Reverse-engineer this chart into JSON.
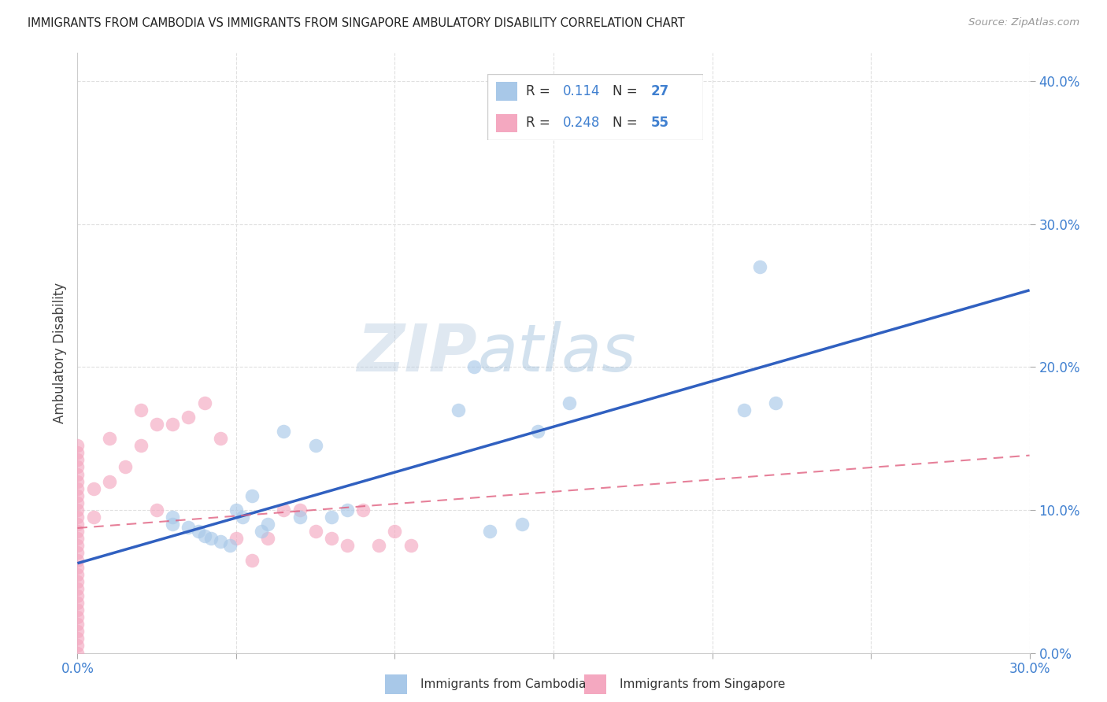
{
  "title": "IMMIGRANTS FROM CAMBODIA VS IMMIGRANTS FROM SINGAPORE AMBULATORY DISABILITY CORRELATION CHART",
  "source": "Source: ZipAtlas.com",
  "ylabel": "Ambulatory Disability",
  "legend_label1": "Immigrants from Cambodia",
  "legend_label2": "Immigrants from Singapore",
  "R1": "0.114",
  "N1": "27",
  "R2": "0.248",
  "N2": "55",
  "xlim": [
    0.0,
    0.3
  ],
  "ylim": [
    0.0,
    0.42
  ],
  "xticks": [
    0.0,
    0.05,
    0.1,
    0.15,
    0.2,
    0.25,
    0.3
  ],
  "yticks": [
    0.0,
    0.1,
    0.2,
    0.3,
    0.4
  ],
  "color_blue": "#a8c8e8",
  "color_pink": "#f4a8c0",
  "color_blue_line": "#3060c0",
  "color_pink_line": "#e06080",
  "color_blue_text": "#4080d0",
  "blue_x": [
    0.03,
    0.03,
    0.035,
    0.038,
    0.04,
    0.042,
    0.045,
    0.048,
    0.05,
    0.052,
    0.055,
    0.058,
    0.06,
    0.065,
    0.07,
    0.075,
    0.08,
    0.085,
    0.12,
    0.125,
    0.13,
    0.14,
    0.145,
    0.155,
    0.21,
    0.215,
    0.22
  ],
  "blue_y": [
    0.095,
    0.09,
    0.088,
    0.085,
    0.082,
    0.08,
    0.078,
    0.075,
    0.1,
    0.095,
    0.11,
    0.085,
    0.09,
    0.155,
    0.095,
    0.145,
    0.095,
    0.1,
    0.17,
    0.2,
    0.085,
    0.09,
    0.155,
    0.175,
    0.17,
    0.27,
    0.175
  ],
  "pink_x": [
    0.0,
    0.0,
    0.0,
    0.0,
    0.0,
    0.0,
    0.0,
    0.0,
    0.0,
    0.0,
    0.0,
    0.0,
    0.0,
    0.0,
    0.0,
    0.0,
    0.0,
    0.0,
    0.0,
    0.0,
    0.0,
    0.0,
    0.0,
    0.0,
    0.0,
    0.0,
    0.0,
    0.0,
    0.0,
    0.0,
    0.005,
    0.005,
    0.01,
    0.01,
    0.015,
    0.02,
    0.02,
    0.025,
    0.025,
    0.03,
    0.035,
    0.04,
    0.045,
    0.05,
    0.055,
    0.06,
    0.065,
    0.07,
    0.075,
    0.08,
    0.085,
    0.09,
    0.095,
    0.1,
    0.105
  ],
  "pink_y": [
    0.0,
    0.005,
    0.01,
    0.015,
    0.02,
    0.025,
    0.03,
    0.035,
    0.04,
    0.045,
    0.05,
    0.055,
    0.06,
    0.065,
    0.07,
    0.075,
    0.08,
    0.085,
    0.09,
    0.095,
    0.1,
    0.105,
    0.11,
    0.115,
    0.12,
    0.125,
    0.13,
    0.135,
    0.14,
    0.145,
    0.095,
    0.115,
    0.12,
    0.15,
    0.13,
    0.145,
    0.17,
    0.1,
    0.16,
    0.16,
    0.165,
    0.175,
    0.15,
    0.08,
    0.065,
    0.08,
    0.1,
    0.1,
    0.085,
    0.08,
    0.075,
    0.1,
    0.075,
    0.085,
    0.075
  ],
  "background_color": "#ffffff",
  "grid_color": "#e0e0e0"
}
